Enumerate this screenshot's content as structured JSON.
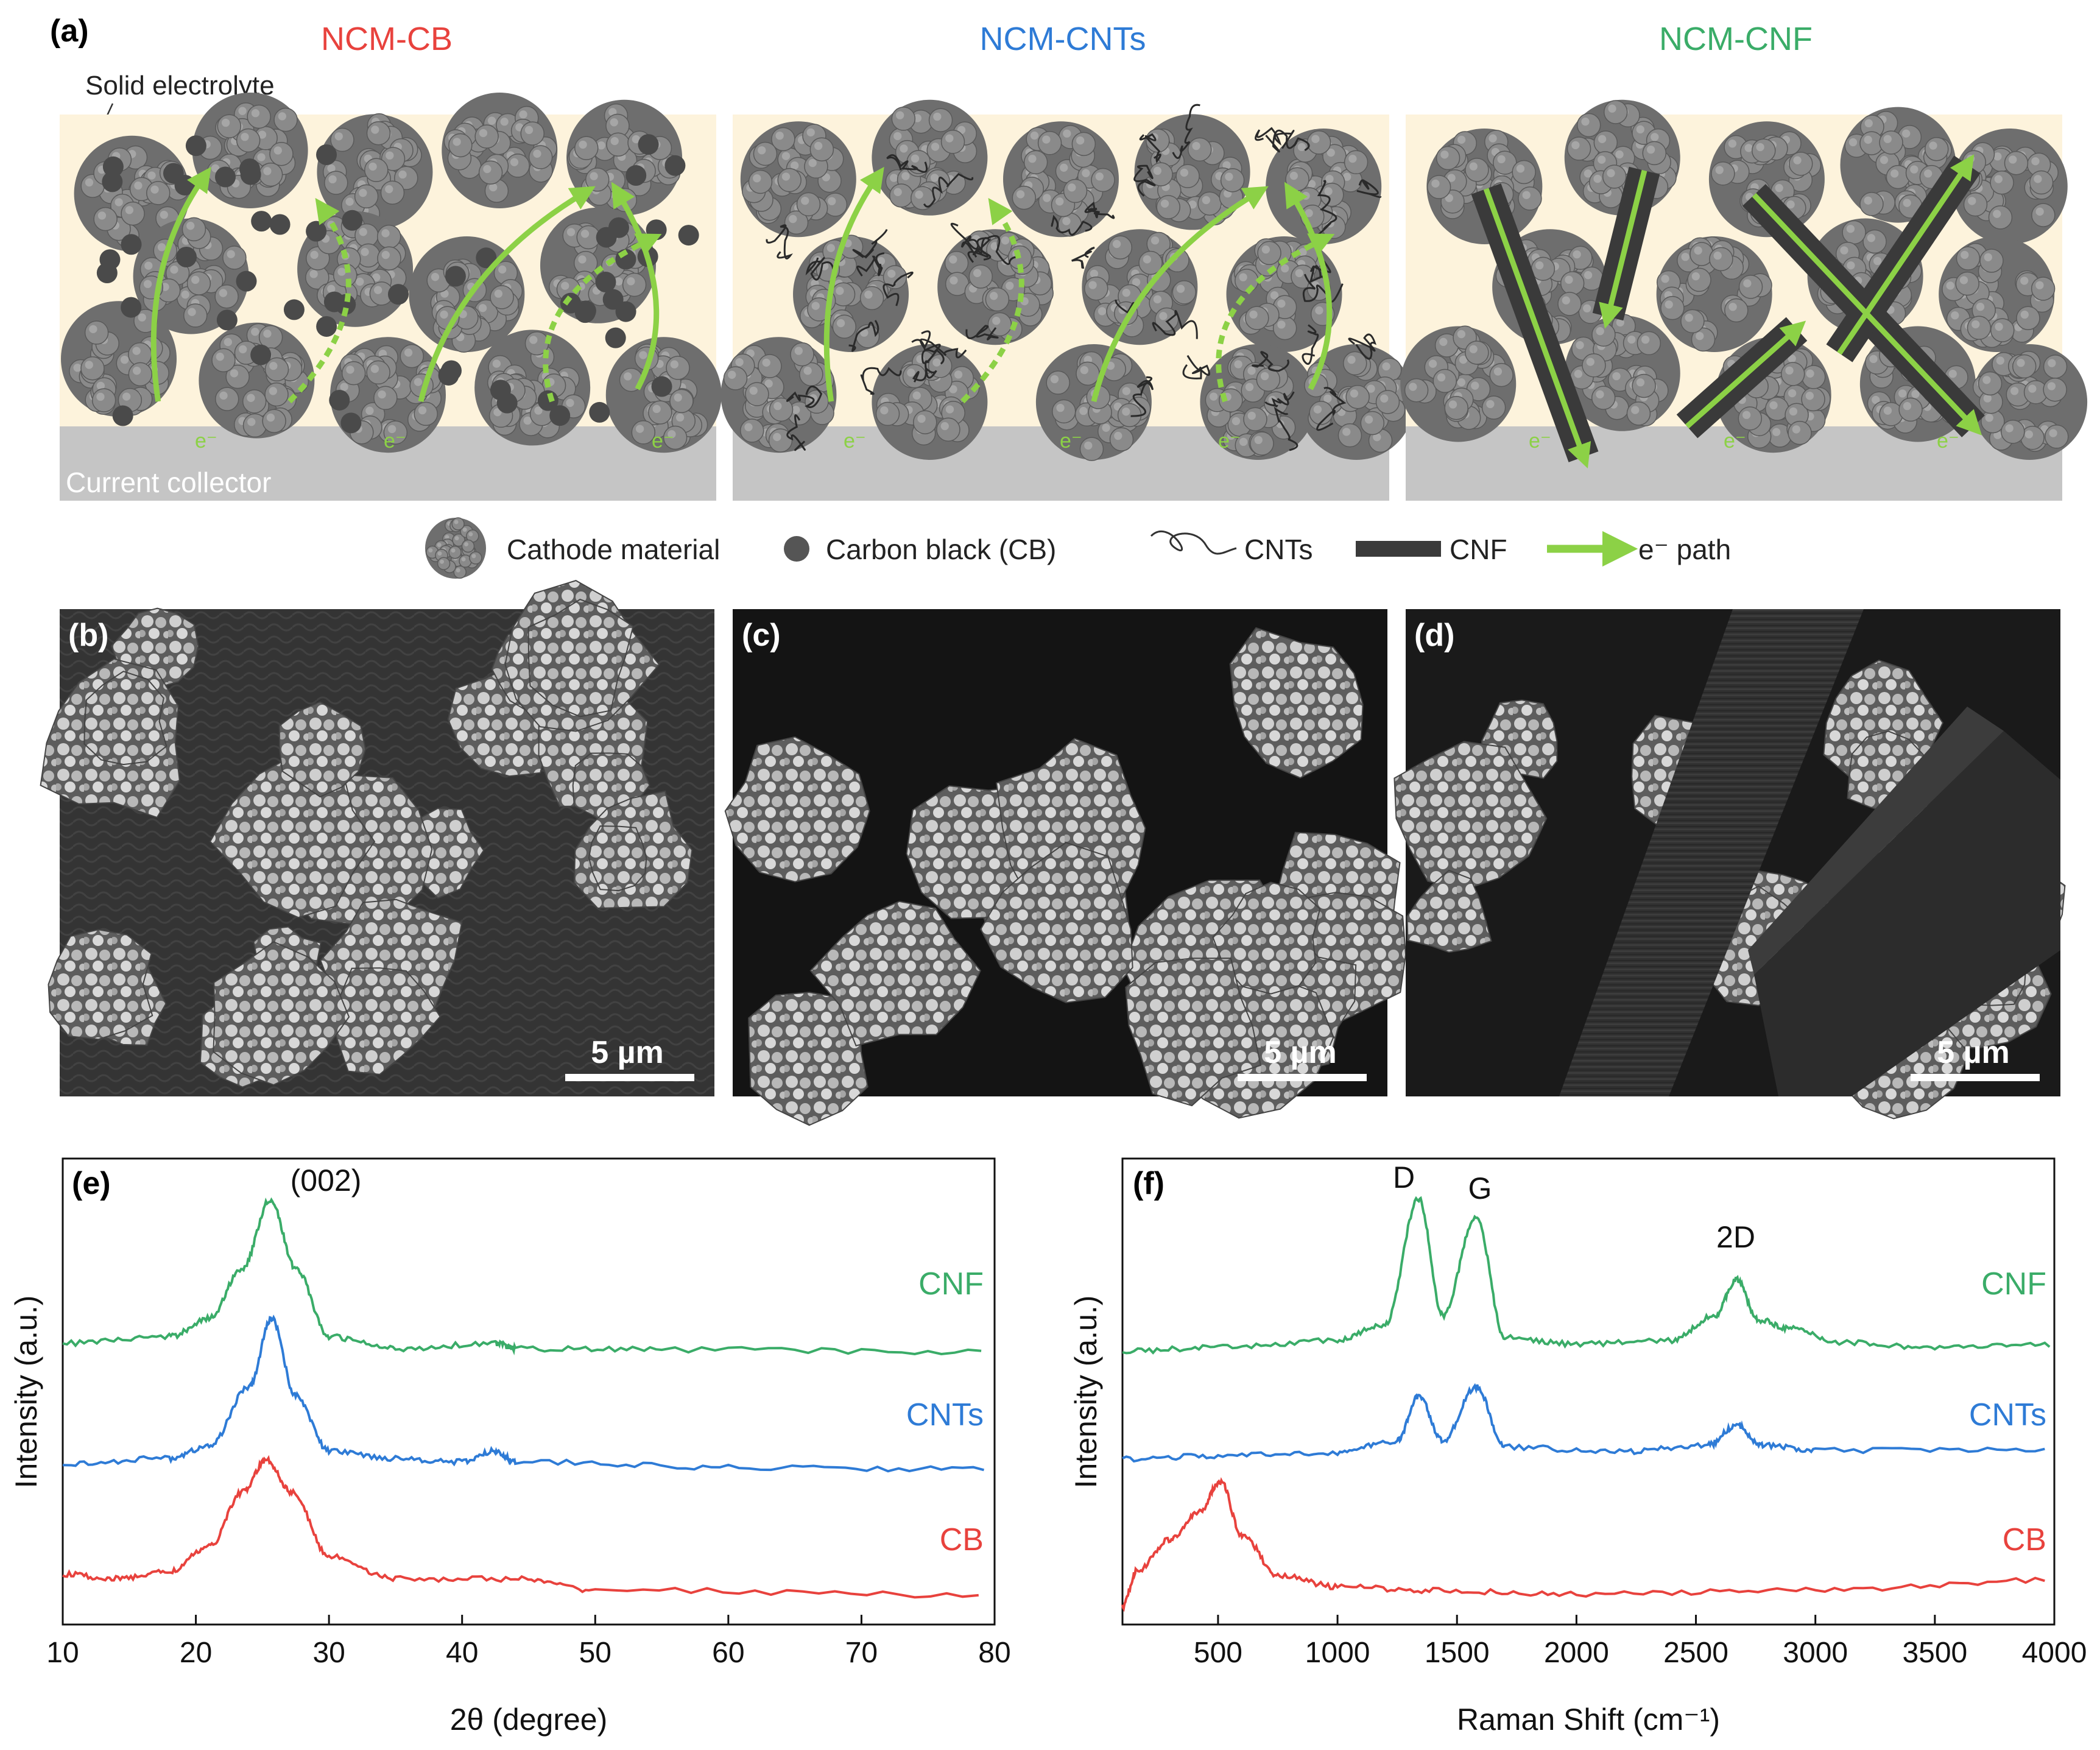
{
  "panel_a": {
    "label": "(a)",
    "titles": [
      {
        "text": "NCM-CB",
        "color": "#e8423d"
      },
      {
        "text": "NCM-CNTs",
        "color": "#2e7bd6"
      },
      {
        "text": "NCM-CNF",
        "color": "#3aac68"
      }
    ],
    "solid_electrolyte": "Solid electrolyte",
    "current_collector": "Current collector",
    "electron_symbol": "e⁻",
    "legend": {
      "cathode": "Cathode material",
      "carbon_black": "Carbon black (CB)",
      "cnts": "CNTs",
      "cnf": "CNF",
      "e_path": "e⁻ path"
    },
    "colors": {
      "electrolyte": "#fdf3dc",
      "collector": "#c5c5c5",
      "particle": "#7a7a7a",
      "path": "#8cd146"
    }
  },
  "sem": [
    {
      "label": "(b)",
      "scale": "5 µm"
    },
    {
      "label": "(c)",
      "scale": "5 µm"
    },
    {
      "label": "(d)",
      "scale": "5 µm"
    }
  ],
  "chart_data": [
    {
      "type": "line",
      "panel_label": "(e)",
      "xlabel": "2θ (degree)",
      "ylabel": "Intensity (a.u.)",
      "xlim": [
        10,
        80
      ],
      "xticks": [
        "10",
        "20",
        "30",
        "40",
        "50",
        "60",
        "70",
        "80"
      ],
      "annotations": [
        {
          "text": "(002)",
          "x": 27.6
        }
      ],
      "series": [
        {
          "name": "CNF",
          "color": "#3aac68",
          "points": [
            [
              10,
              0.48
            ],
            [
              18,
              0.55
            ],
            [
              21,
              0.75
            ],
            [
              23.5,
              1.3
            ],
            [
              25.6,
              2.05
            ],
            [
              27.5,
              1.3
            ],
            [
              30,
              0.55
            ],
            [
              35,
              0.42
            ],
            [
              42.5,
              0.48
            ],
            [
              44,
              0.42
            ],
            [
              55,
              0.41
            ],
            [
              80,
              0.38
            ]
          ]
        },
        {
          "name": "CNTs",
          "color": "#2e7bd6",
          "points": [
            [
              10,
              0.36
            ],
            [
              18,
              0.42
            ],
            [
              21,
              0.55
            ],
            [
              24,
              1.2
            ],
            [
              25.7,
              1.95
            ],
            [
              27.5,
              1.1
            ],
            [
              30,
              0.5
            ],
            [
              35,
              0.42
            ],
            [
              40,
              0.38
            ],
            [
              42.5,
              0.5
            ],
            [
              44,
              0.38
            ],
            [
              60,
              0.32
            ],
            [
              80,
              0.3
            ]
          ]
        },
        {
          "name": "CB",
          "color": "#e8423d",
          "points": [
            [
              10,
              0.55
            ],
            [
              14,
              0.5
            ],
            [
              18,
              0.58
            ],
            [
              21,
              0.85
            ],
            [
              23.5,
              1.45
            ],
            [
              25.3,
              1.8
            ],
            [
              27.2,
              1.45
            ],
            [
              30,
              0.75
            ],
            [
              35,
              0.5
            ],
            [
              44,
              0.5
            ],
            [
              50,
              0.38
            ],
            [
              80,
              0.32
            ]
          ]
        }
      ]
    },
    {
      "type": "line",
      "panel_label": "(f)",
      "xlabel": "Raman Shift (cm⁻¹)",
      "ylabel": "Intensity (a.u.)",
      "xlim": [
        100,
        4000
      ],
      "xticks": [
        "500",
        "1000",
        "1500",
        "2000",
        "2500",
        "3000",
        "3500",
        "4000"
      ],
      "annotations": [
        {
          "text": "D",
          "x": 1290
        },
        {
          "text": "G",
          "x": 1560
        },
        {
          "text": "2D",
          "x": 2660
        }
      ],
      "series": [
        {
          "name": "CNF",
          "color": "#3aac68",
          "points": [
            [
              100,
              0.4
            ],
            [
              500,
              0.44
            ],
            [
              1000,
              0.52
            ],
            [
              1200,
              0.7
            ],
            [
              1340,
              2.1
            ],
            [
              1440,
              0.8
            ],
            [
              1580,
              1.9
            ],
            [
              1700,
              0.55
            ],
            [
              2000,
              0.48
            ],
            [
              2400,
              0.52
            ],
            [
              2580,
              0.8
            ],
            [
              2670,
              1.2
            ],
            [
              2760,
              0.75
            ],
            [
              2900,
              0.65
            ],
            [
              3100,
              0.5
            ],
            [
              3500,
              0.44
            ],
            [
              4000,
              0.47
            ]
          ]
        },
        {
          "name": "CNTs",
          "color": "#2e7bd6",
          "points": [
            [
              100,
              0.35
            ],
            [
              500,
              0.38
            ],
            [
              1000,
              0.42
            ],
            [
              1250,
              0.55
            ],
            [
              1340,
              1.05
            ],
            [
              1440,
              0.55
            ],
            [
              1580,
              1.15
            ],
            [
              1700,
              0.48
            ],
            [
              2200,
              0.43
            ],
            [
              2550,
              0.5
            ],
            [
              2670,
              0.72
            ],
            [
              2780,
              0.5
            ],
            [
              3000,
              0.44
            ],
            [
              4000,
              0.45
            ]
          ]
        },
        {
          "name": "CB",
          "color": "#e8423d",
          "points": [
            [
              100,
              0.2
            ],
            [
              160,
              0.6
            ],
            [
              300,
              0.95
            ],
            [
              420,
              1.25
            ],
            [
              510,
              1.6
            ],
            [
              600,
              1.0
            ],
            [
              750,
              0.55
            ],
            [
              1000,
              0.42
            ],
            [
              1400,
              0.38
            ],
            [
              2000,
              0.34
            ],
            [
              3000,
              0.38
            ],
            [
              4000,
              0.5
            ]
          ]
        }
      ]
    }
  ]
}
